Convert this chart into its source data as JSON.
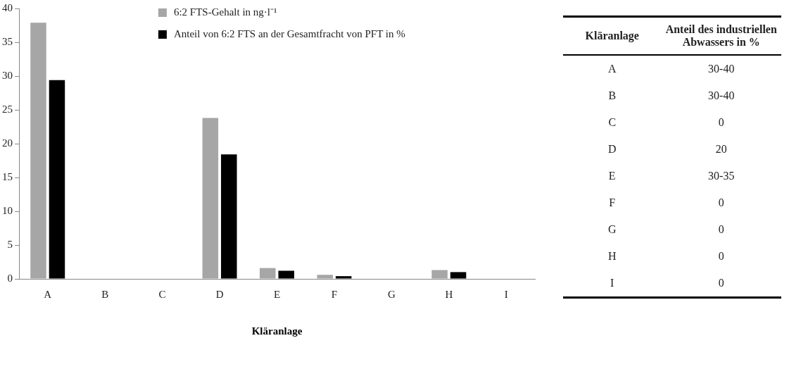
{
  "chart_data": [
    {
      "type": "bar",
      "xlabel": "Kläranlage",
      "categories": [
        "A",
        "B",
        "C",
        "D",
        "E",
        "F",
        "G",
        "H",
        "I"
      ],
      "series": [
        {
          "name": "6:2 FTS-Gehalt in ng·l⁻¹",
          "color": "#a6a6a6",
          "values": [
            37.9,
            0,
            0,
            23.8,
            1.6,
            0.6,
            0,
            1.3,
            0
          ]
        },
        {
          "name": "Anteil von 6:2 FTS an der Gesamtfracht von PFT in %",
          "color": "#000000",
          "values": [
            29.4,
            0,
            0,
            18.4,
            1.2,
            0.4,
            0,
            1.0,
            0
          ]
        }
      ],
      "ylim": [
        0,
        40
      ],
      "yticks": [
        0,
        5,
        10,
        15,
        20,
        25,
        30,
        35,
        40
      ],
      "grid": false,
      "legend": "top"
    },
    {
      "type": "other",
      "annotations": [
        "Kläranlage",
        "Anteil des industriellen Abwassers in %",
        "A",
        "30-40",
        "B",
        "30-40",
        "C",
        "0",
        "D",
        "20",
        "E",
        "30-35",
        "F",
        "0",
        "G",
        "0",
        "H",
        "0",
        "I",
        "0"
      ]
    }
  ]
}
